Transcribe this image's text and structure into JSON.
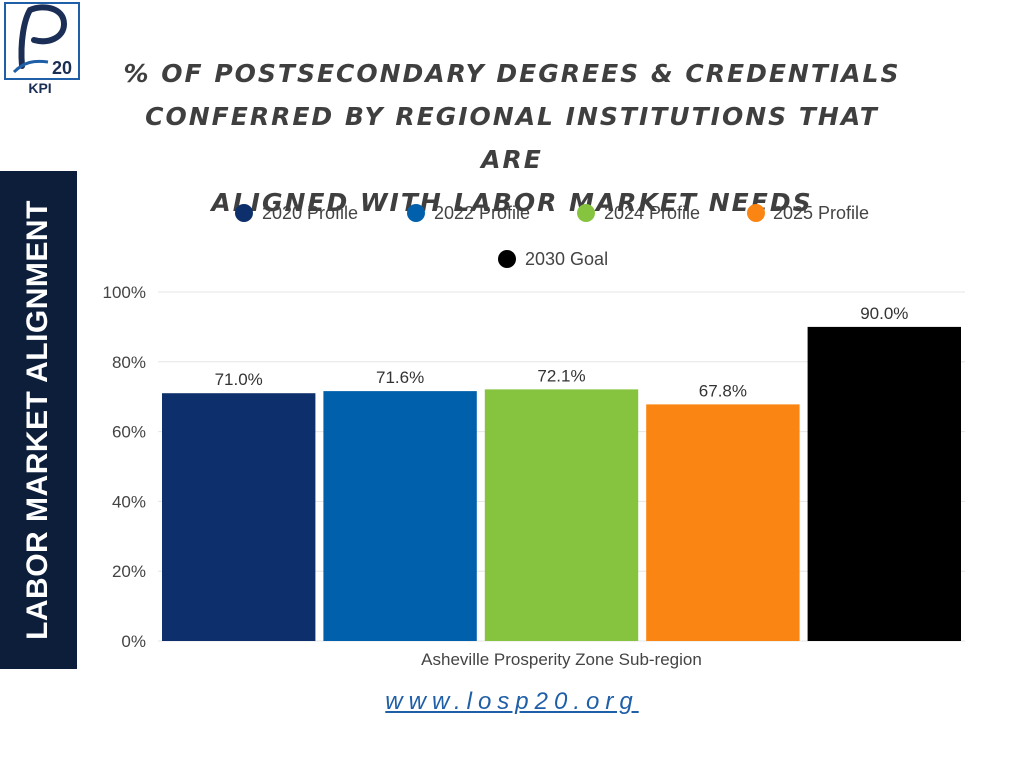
{
  "logo": {
    "text": "20",
    "caption": "KPI",
    "primary_color": "#1b2e55",
    "accent_color": "#1f5fa8"
  },
  "side_label": "LABOR MARKET ALIGNMENT",
  "title_lines": [
    "% OF POSTSECONDARY DEGREES & CREDENTIALS",
    "CONFERRED BY REGIONAL INSTITUTIONS THAT ARE",
    "ALIGNED WITH LABOR MARKET NEEDS"
  ],
  "website": "www.losp20.org",
  "chart_data": {
    "type": "bar",
    "title": "% OF POSTSECONDARY DEGREES & CREDENTIALS CONFERRED BY REGIONAL INSTITUTIONS THAT ARE ALIGNED WITH LABOR MARKET NEEDS",
    "categories": [
      "Asheville Prosperity Zone Sub-region"
    ],
    "series": [
      {
        "name": "2020 Profile",
        "color": "#0d2f6b",
        "values": [
          71.0
        ],
        "label": "71.0%"
      },
      {
        "name": "2022 Profile",
        "color": "#0060ac",
        "values": [
          71.6
        ],
        "label": "71.6%"
      },
      {
        "name": "2024 Profile",
        "color": "#86c440",
        "values": [
          72.1
        ],
        "label": "72.1%"
      },
      {
        "name": "2025 Profile",
        "color": "#fb8512",
        "values": [
          67.8
        ],
        "label": "67.8%"
      },
      {
        "name": "2030 Goal",
        "color": "#000000",
        "values": [
          90.0
        ],
        "label": "90.0%"
      }
    ],
    "y_ticks": [
      "0%",
      "20%",
      "40%",
      "60%",
      "80%",
      "100%"
    ],
    "y_tick_values": [
      0,
      20,
      40,
      60,
      80,
      100
    ],
    "ylim": [
      0,
      100
    ],
    "xlabel": "",
    "ylabel": "",
    "grid": true,
    "legend_position": "top"
  }
}
